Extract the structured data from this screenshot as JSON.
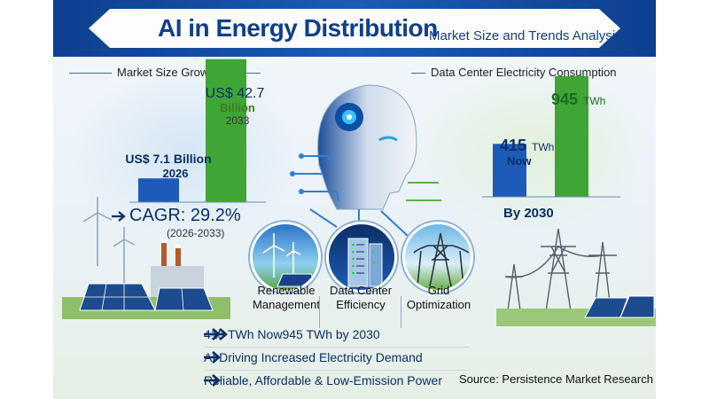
{
  "header": {
    "title": "AI in Energy Distribution",
    "subtitle": "Market Size and Trends Analysis"
  },
  "market_section": {
    "label": "Market Size Growth",
    "cagr_text": "CAGR: 29.2%",
    "cagr_period": "(2026-2033)",
    "bars": [
      {
        "value_label": "US$ 7.1 Billion",
        "year": "2026"
      },
      {
        "value_label_prefix": "US$ 42.7",
        "value_label_suffix": "Billion",
        "year": "2033"
      }
    ]
  },
  "datacenter_section": {
    "label": "Data Center Electricity Consumption",
    "now_value": "415",
    "now_unit": "TWh",
    "now_text": "Now",
    "future_value": "945",
    "future_unit": "TWh",
    "future_text": "By 2030"
  },
  "applications": [
    {
      "label_line1": "Renewable",
      "label_line2": "Management",
      "icon": "wind-solar-icon"
    },
    {
      "label_line1": "Data Center",
      "label_line2": "Efficiency",
      "icon": "server-rack-icon"
    },
    {
      "label_line1": "Grid",
      "label_line2": "Optimization",
      "icon": "transmission-tower-icon"
    }
  ],
  "highlights": [
    {
      "text": "415 TWh Now",
      "text2": "945 TWh by 2030"
    },
    {
      "text": "AI Driving Increased Electricity Demand"
    },
    {
      "text": "Reliable, Affordable & Low-Emission Power"
    }
  ],
  "source": "Source: Persistence Market Research",
  "colors": {
    "banner": "#0d3f8f",
    "blue_bar": "#1e5bb8",
    "green_bar": "#3fa535",
    "title_text": "#103f8a"
  },
  "chart_data": [
    {
      "type": "bar",
      "categories": [
        "2026",
        "2033"
      ],
      "values": [
        7.1,
        42.7
      ],
      "title": "Market Size Growth",
      "ylabel": "",
      "ylim": [
        0,
        45
      ]
    },
    {
      "type": "bar",
      "categories": [
        "Now",
        "2030"
      ],
      "values": [
        415,
        945
      ],
      "title": "Data Center Electricity Consumption",
      "ylabel": "",
      "ylim": [
        0,
        1000
      ]
    }
  ]
}
